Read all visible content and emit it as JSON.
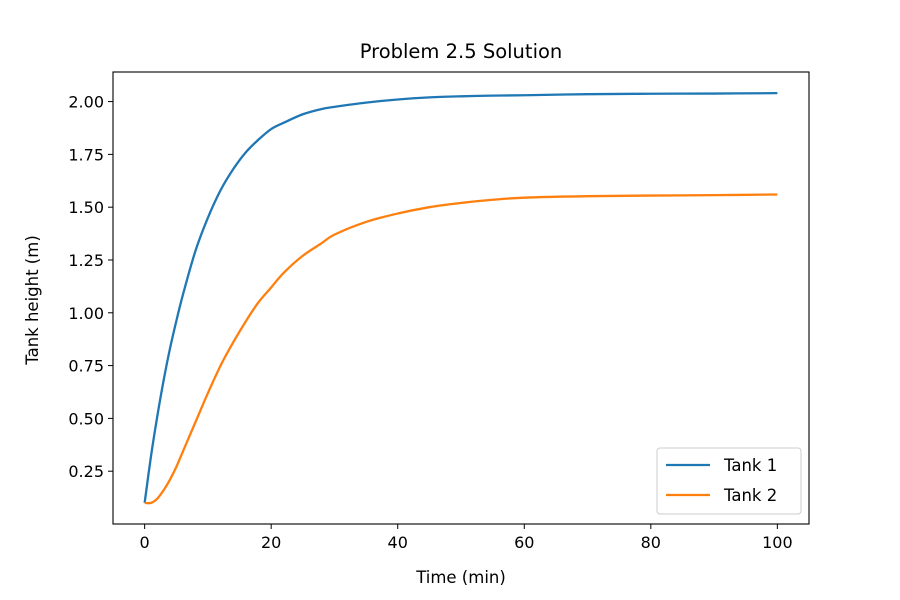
{
  "chart_data": {
    "type": "line",
    "title": "Problem 2.5 Solution",
    "xlabel": "Time (min)",
    "ylabel": "Tank height (m)",
    "xlim": [
      -5,
      105
    ],
    "ylim": [
      0.0,
      2.14
    ],
    "xticks": [
      0,
      20,
      40,
      60,
      80,
      100
    ],
    "xtick_labels": [
      "0",
      "20",
      "40",
      "60",
      "80",
      "100"
    ],
    "yticks": [
      0.25,
      0.5,
      0.75,
      1.0,
      1.25,
      1.5,
      1.75,
      2.0
    ],
    "ytick_labels": [
      "0.25",
      "0.50",
      "0.75",
      "1.00",
      "1.25",
      "1.50",
      "1.75",
      "2.00"
    ],
    "grid": false,
    "legend_position": "lower-right",
    "x": [
      0,
      1,
      2,
      3,
      4,
      5,
      6,
      8,
      10,
      12,
      14,
      16,
      18,
      20,
      22,
      25,
      28,
      30,
      35,
      40,
      45,
      50,
      55,
      60,
      70,
      80,
      90,
      100
    ],
    "series": [
      {
        "name": "Tank 1",
        "color": "#1f77b4",
        "values": [
          0.1,
          0.32,
          0.51,
          0.68,
          0.83,
          0.96,
          1.08,
          1.29,
          1.45,
          1.58,
          1.68,
          1.76,
          1.82,
          1.87,
          1.9,
          1.94,
          1.965,
          1.975,
          1.995,
          2.01,
          2.02,
          2.025,
          2.028,
          2.03,
          2.035,
          2.037,
          2.038,
          2.04
        ]
      },
      {
        "name": "Tank 2",
        "color": "#ff7f0e",
        "values": [
          0.1,
          0.1,
          0.12,
          0.16,
          0.21,
          0.27,
          0.34,
          0.48,
          0.62,
          0.75,
          0.86,
          0.96,
          1.05,
          1.12,
          1.19,
          1.27,
          1.33,
          1.37,
          1.43,
          1.47,
          1.5,
          1.52,
          1.535,
          1.545,
          1.552,
          1.555,
          1.557,
          1.56
        ]
      }
    ]
  }
}
